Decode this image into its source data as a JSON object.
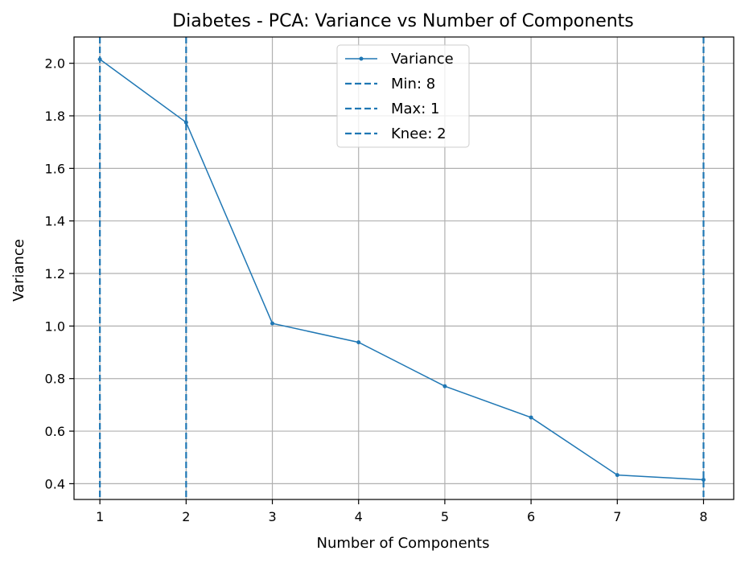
{
  "chart_data": {
    "type": "line",
    "title": "Diabetes - PCA: Variance vs Number of Components",
    "xlabel": "Number of Components",
    "ylabel": "Variance",
    "x": [
      1,
      2,
      3,
      4,
      5,
      6,
      7,
      8
    ],
    "series": [
      {
        "name": "Variance",
        "values": [
          2.015,
          1.775,
          1.01,
          0.938,
          0.771,
          0.652,
          0.433,
          0.415
        ],
        "color": "#1f77b4"
      }
    ],
    "vlines": [
      {
        "label": "Min: 8",
        "x": 8,
        "color": "#1f77b4",
        "style": "dashed"
      },
      {
        "label": "Max: 1",
        "x": 1,
        "color": "#1f77b4",
        "style": "dashed"
      },
      {
        "label": "Knee: 2",
        "x": 2,
        "color": "#1f77b4",
        "style": "dashed"
      }
    ],
    "xlim": [
      0.7,
      8.35
    ],
    "ylim": [
      0.34,
      2.1
    ],
    "xticks": [
      "1",
      "2",
      "3",
      "4",
      "5",
      "6",
      "7",
      "8"
    ],
    "yticks": [
      "0.4",
      "0.6",
      "0.8",
      "1.0",
      "1.2",
      "1.4",
      "1.6",
      "1.8",
      "2.0"
    ],
    "grid": true,
    "legend_position": "top-center"
  }
}
